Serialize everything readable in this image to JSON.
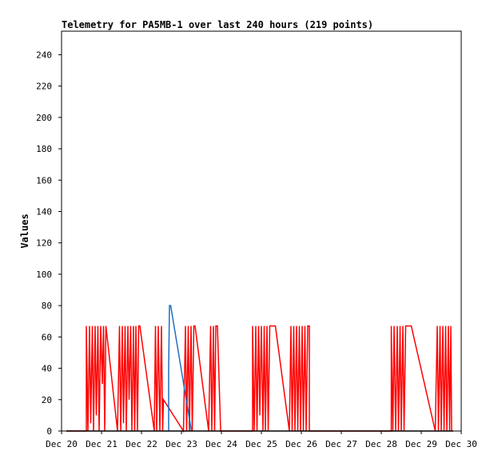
{
  "chart_data": {
    "type": "line",
    "title": "Telemetry for PA5MB-1 over last 240 hours (219 points)",
    "xlabel": "",
    "ylabel": "Values",
    "x_tick_labels": [
      "Dec 20",
      "Dec 21",
      "Dec 22",
      "Dec 23",
      "Dec 24",
      "Dec 25",
      "Dec 26",
      "Dec 27",
      "Dec 28",
      "Dec 29",
      "Dec 30"
    ],
    "y_ticks": [
      0,
      20,
      40,
      60,
      80,
      100,
      120,
      140,
      160,
      180,
      200,
      220,
      240
    ],
    "xlim": [
      0,
      10
    ],
    "ylim": [
      0,
      255
    ],
    "grid": false,
    "colors": {
      "red_series": "#ff0000",
      "blue_series": "#1f6fbf",
      "black_series": "#000000",
      "frame": "#000000"
    },
    "series": [
      {
        "key": "red",
        "points": [
          [
            0.12,
            0
          ],
          [
            0.62,
            0
          ],
          [
            0.62,
            67
          ],
          [
            0.66,
            0
          ],
          [
            0.7,
            67
          ],
          [
            0.73,
            5
          ],
          [
            0.77,
            67
          ],
          [
            0.8,
            0
          ],
          [
            0.84,
            67
          ],
          [
            0.87,
            10
          ],
          [
            0.91,
            67
          ],
          [
            0.94,
            0
          ],
          [
            0.98,
            67
          ],
          [
            1.02,
            30
          ],
          [
            1.05,
            67
          ],
          [
            1.08,
            0
          ],
          [
            1.11,
            67
          ],
          [
            1.4,
            0
          ],
          [
            1.45,
            67
          ],
          [
            1.48,
            0
          ],
          [
            1.52,
            67
          ],
          [
            1.55,
            5
          ],
          [
            1.59,
            67
          ],
          [
            1.62,
            0
          ],
          [
            1.66,
            67
          ],
          [
            1.69,
            20
          ],
          [
            1.73,
            67
          ],
          [
            1.76,
            0
          ],
          [
            1.8,
            67
          ],
          [
            1.83,
            0
          ],
          [
            1.86,
            67
          ],
          [
            1.9,
            0
          ],
          [
            1.93,
            67
          ],
          [
            1.96,
            67
          ],
          [
            2.32,
            0
          ],
          [
            2.35,
            67
          ],
          [
            2.38,
            0
          ],
          [
            2.42,
            67
          ],
          [
            2.46,
            0
          ],
          [
            2.5,
            67
          ],
          [
            2.53,
            0
          ],
          [
            2.55,
            20
          ],
          [
            3.05,
            0
          ],
          [
            3.1,
            67
          ],
          [
            3.13,
            0
          ],
          [
            3.17,
            67
          ],
          [
            3.2,
            0
          ],
          [
            3.24,
            67
          ],
          [
            3.27,
            0
          ],
          [
            3.31,
            67
          ],
          [
            3.34,
            67
          ],
          [
            3.68,
            0
          ],
          [
            3.73,
            67
          ],
          [
            3.76,
            0
          ],
          [
            3.8,
            67
          ],
          [
            3.83,
            0
          ],
          [
            3.86,
            67
          ],
          [
            3.9,
            67
          ],
          [
            3.98,
            0
          ],
          [
            4.78,
            0
          ],
          [
            4.78,
            67
          ],
          [
            4.82,
            0
          ],
          [
            4.86,
            67
          ],
          [
            4.89,
            0
          ],
          [
            4.93,
            67
          ],
          [
            4.96,
            10
          ],
          [
            5.0,
            67
          ],
          [
            5.04,
            0
          ],
          [
            5.07,
            67
          ],
          [
            5.1,
            0
          ],
          [
            5.14,
            67
          ],
          [
            5.17,
            0
          ],
          [
            5.21,
            67
          ],
          [
            5.24,
            67
          ],
          [
            5.35,
            67
          ],
          [
            5.7,
            0
          ],
          [
            5.74,
            67
          ],
          [
            5.77,
            0
          ],
          [
            5.81,
            67
          ],
          [
            5.84,
            0
          ],
          [
            5.88,
            67
          ],
          [
            5.91,
            0
          ],
          [
            5.95,
            67
          ],
          [
            5.98,
            0
          ],
          [
            6.02,
            67
          ],
          [
            6.05,
            0
          ],
          [
            6.09,
            67
          ],
          [
            6.12,
            0
          ],
          [
            6.16,
            67
          ],
          [
            6.2,
            67
          ],
          [
            6.2,
            0
          ],
          [
            8.25,
            0
          ],
          [
            8.25,
            67
          ],
          [
            8.29,
            0
          ],
          [
            8.32,
            67
          ],
          [
            8.36,
            0
          ],
          [
            8.4,
            67
          ],
          [
            8.43,
            0
          ],
          [
            8.47,
            67
          ],
          [
            8.5,
            0
          ],
          [
            8.54,
            67
          ],
          [
            8.57,
            0
          ],
          [
            8.61,
            67
          ],
          [
            8.64,
            67
          ],
          [
            8.75,
            67
          ],
          [
            9.35,
            0
          ],
          [
            9.4,
            67
          ],
          [
            9.43,
            0
          ],
          [
            9.47,
            67
          ],
          [
            9.5,
            0
          ],
          [
            9.54,
            67
          ],
          [
            9.57,
            0
          ],
          [
            9.61,
            67
          ],
          [
            9.64,
            0
          ],
          [
            9.68,
            67
          ],
          [
            9.71,
            0
          ],
          [
            9.74,
            67
          ],
          [
            9.76,
            0
          ]
        ]
      },
      {
        "key": "blue",
        "points": [
          [
            2.68,
            0
          ],
          [
            2.68,
            40
          ],
          [
            2.7,
            80
          ],
          [
            2.73,
            80
          ],
          [
            3.25,
            0
          ]
        ]
      },
      {
        "key": "black",
        "points": [
          [
            0.12,
            0
          ],
          [
            9.8,
            0
          ]
        ]
      }
    ]
  }
}
